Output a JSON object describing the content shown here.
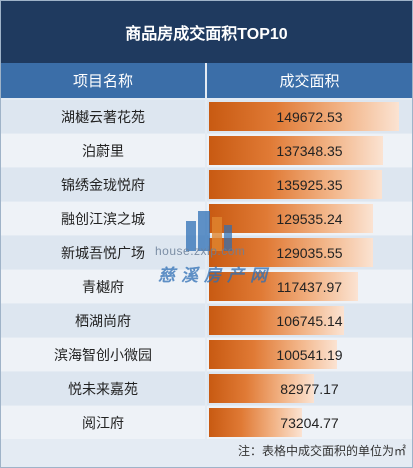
{
  "title": "商品房成交面积TOP10",
  "header": {
    "col1": "项目名称",
    "col2": "成交面积"
  },
  "chart_data": {
    "type": "bar",
    "categories": [
      "湖樾云著花苑",
      "泊蔚里",
      "锦绣金珑悦府",
      "融创江滨之城",
      "新城吾悦广场",
      "青樾府",
      "栖湖尚府",
      "滨海智创小微园",
      "悦未来嘉苑",
      "阅江府"
    ],
    "values": [
      149672.53,
      137348.35,
      135925.35,
      129535.24,
      129035.55,
      117437.97,
      106745.14,
      100541.19,
      82977.17,
      73204.77
    ],
    "labels": [
      "149672.53",
      "137348.35",
      "135925.35",
      "129535.24",
      "129035.55",
      "117437.97",
      "106745.14",
      "100541.19",
      "82977.17",
      "73204.77"
    ],
    "xlim": [
      0,
      156000
    ]
  },
  "footnote": "注：表格中成交面积的单位为㎡",
  "watermark": {
    "url": "house.zxip.com",
    "brand": "慈溪房产网"
  },
  "colors": {
    "title_bg": "#1f3a5f",
    "header_bg": "#3b6ea8",
    "bar_start": "#c85a12",
    "bar_end": "#fbe3d2"
  }
}
